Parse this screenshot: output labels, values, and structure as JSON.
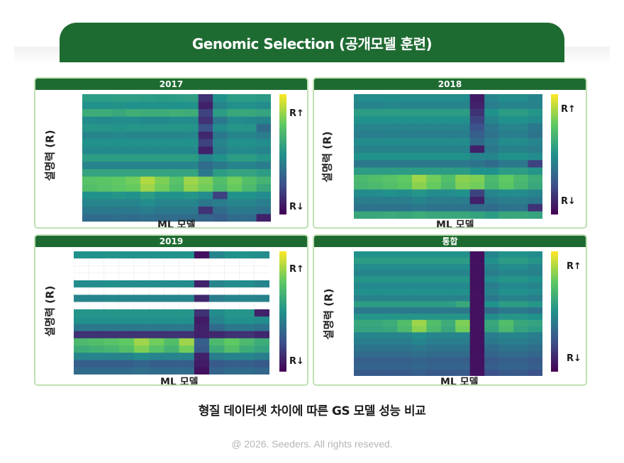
{
  "header": {
    "title": "Genomic Selection  (공개모델 훈련)"
  },
  "caption": "형질 데이터셋 차이에 따른 GS 모델 성능 비교",
  "footer": "@ 2026. Seeders. All rights reseved.",
  "colors": {
    "brand_green": "#1e6b32",
    "panel_border": "#bfe0b3"
  },
  "chart_data": [
    {
      "type": "heatmap",
      "title": "2017",
      "xlabel": "ML 모델",
      "ylabel": "설명력 (R)",
      "legend_high": "R↑",
      "legend_low": "R↓",
      "rows": 17,
      "cols": 13,
      "values": [
        [
          0.55,
          0.55,
          0.56,
          0.56,
          0.55,
          0.54,
          0.55,
          0.56,
          0.15,
          0.5,
          0.55,
          0.55,
          0.54
        ],
        [
          0.5,
          0.5,
          0.51,
          0.5,
          0.5,
          0.5,
          0.5,
          0.5,
          0.1,
          0.45,
          0.5,
          0.5,
          0.48
        ],
        [
          0.62,
          0.62,
          0.6,
          0.63,
          0.62,
          0.62,
          0.63,
          0.62,
          0.2,
          0.55,
          0.6,
          0.6,
          0.58
        ],
        [
          0.48,
          0.47,
          0.48,
          0.48,
          0.47,
          0.47,
          0.48,
          0.48,
          0.15,
          0.4,
          0.48,
          0.47,
          0.45
        ],
        [
          0.52,
          0.52,
          0.51,
          0.52,
          0.52,
          0.52,
          0.52,
          0.52,
          0.25,
          0.48,
          0.52,
          0.52,
          0.35
        ],
        [
          0.45,
          0.45,
          0.46,
          0.45,
          0.45,
          0.45,
          0.45,
          0.46,
          0.12,
          0.4,
          0.45,
          0.45,
          0.42
        ],
        [
          0.5,
          0.5,
          0.5,
          0.5,
          0.5,
          0.5,
          0.5,
          0.5,
          0.2,
          0.45,
          0.5,
          0.5,
          0.48
        ],
        [
          0.47,
          0.47,
          0.47,
          0.47,
          0.47,
          0.47,
          0.47,
          0.47,
          0.1,
          0.42,
          0.47,
          0.47,
          0.45
        ],
        [
          0.55,
          0.55,
          0.55,
          0.55,
          0.55,
          0.55,
          0.55,
          0.55,
          0.45,
          0.5,
          0.55,
          0.55,
          0.52
        ],
        [
          0.45,
          0.45,
          0.45,
          0.45,
          0.45,
          0.45,
          0.45,
          0.45,
          0.35,
          0.4,
          0.45,
          0.45,
          0.42
        ],
        [
          0.58,
          0.58,
          0.58,
          0.58,
          0.58,
          0.58,
          0.58,
          0.58,
          0.4,
          0.55,
          0.58,
          0.58,
          0.55
        ],
        [
          0.72,
          0.73,
          0.75,
          0.78,
          0.88,
          0.8,
          0.72,
          0.85,
          0.8,
          0.7,
          0.78,
          0.7,
          0.65
        ],
        [
          0.7,
          0.72,
          0.74,
          0.76,
          0.85,
          0.78,
          0.7,
          0.83,
          0.78,
          0.68,
          0.76,
          0.68,
          0.6
        ],
        [
          0.5,
          0.5,
          0.52,
          0.5,
          0.55,
          0.5,
          0.5,
          0.52,
          0.48,
          0.2,
          0.5,
          0.5,
          0.48
        ],
        [
          0.45,
          0.45,
          0.45,
          0.45,
          0.48,
          0.45,
          0.45,
          0.45,
          0.4,
          0.42,
          0.45,
          0.45,
          0.42
        ],
        [
          0.4,
          0.4,
          0.4,
          0.4,
          0.42,
          0.4,
          0.4,
          0.4,
          0.15,
          0.35,
          0.4,
          0.4,
          0.38
        ],
        [
          0.35,
          0.35,
          0.36,
          0.35,
          0.36,
          0.35,
          0.35,
          0.35,
          0.33,
          0.3,
          0.35,
          0.35,
          0.1
        ]
      ]
    },
    {
      "type": "heatmap",
      "title": "2018",
      "xlabel": "ML 모델",
      "ylabel": "설명력 (R)",
      "legend_high": "R↑",
      "legend_low": "R↓",
      "rows": 17,
      "cols": 13,
      "values": [
        [
          0.48,
          0.48,
          0.49,
          0.48,
          0.48,
          0.48,
          0.48,
          0.48,
          0.08,
          0.45,
          0.48,
          0.48,
          0.45
        ],
        [
          0.45,
          0.45,
          0.46,
          0.45,
          0.45,
          0.45,
          0.45,
          0.45,
          0.1,
          0.42,
          0.45,
          0.45,
          0.44
        ],
        [
          0.55,
          0.55,
          0.55,
          0.55,
          0.55,
          0.55,
          0.55,
          0.55,
          0.15,
          0.5,
          0.55,
          0.55,
          0.52
        ],
        [
          0.5,
          0.5,
          0.5,
          0.5,
          0.5,
          0.5,
          0.5,
          0.5,
          0.2,
          0.45,
          0.5,
          0.5,
          0.48
        ],
        [
          0.45,
          0.45,
          0.45,
          0.45,
          0.45,
          0.45,
          0.45,
          0.45,
          0.25,
          0.4,
          0.45,
          0.45,
          0.4
        ],
        [
          0.42,
          0.42,
          0.43,
          0.42,
          0.42,
          0.42,
          0.42,
          0.42,
          0.3,
          0.38,
          0.42,
          0.42,
          0.38
        ],
        [
          0.48,
          0.48,
          0.48,
          0.48,
          0.48,
          0.48,
          0.48,
          0.48,
          0.35,
          0.42,
          0.48,
          0.48,
          0.45
        ],
        [
          0.44,
          0.44,
          0.44,
          0.44,
          0.44,
          0.44,
          0.44,
          0.44,
          0.1,
          0.4,
          0.44,
          0.44,
          0.42
        ],
        [
          0.5,
          0.5,
          0.5,
          0.5,
          0.5,
          0.5,
          0.5,
          0.5,
          0.45,
          0.45,
          0.5,
          0.5,
          0.48
        ],
        [
          0.4,
          0.4,
          0.4,
          0.4,
          0.4,
          0.4,
          0.4,
          0.4,
          0.38,
          0.35,
          0.4,
          0.4,
          0.2
        ],
        [
          0.55,
          0.55,
          0.55,
          0.55,
          0.55,
          0.55,
          0.55,
          0.55,
          0.5,
          0.5,
          0.55,
          0.55,
          0.52
        ],
        [
          0.68,
          0.7,
          0.72,
          0.75,
          0.85,
          0.78,
          0.7,
          0.82,
          0.8,
          0.68,
          0.75,
          0.68,
          0.62
        ],
        [
          0.66,
          0.68,
          0.7,
          0.73,
          0.82,
          0.76,
          0.68,
          0.8,
          0.78,
          0.66,
          0.73,
          0.66,
          0.6
        ],
        [
          0.48,
          0.48,
          0.5,
          0.48,
          0.52,
          0.48,
          0.48,
          0.5,
          0.2,
          0.45,
          0.48,
          0.48,
          0.45
        ],
        [
          0.42,
          0.42,
          0.42,
          0.42,
          0.45,
          0.42,
          0.42,
          0.42,
          0.1,
          0.4,
          0.42,
          0.42,
          0.4
        ],
        [
          0.38,
          0.38,
          0.38,
          0.38,
          0.4,
          0.38,
          0.38,
          0.38,
          0.35,
          0.35,
          0.38,
          0.38,
          0.15
        ],
        [
          0.6,
          0.6,
          0.61,
          0.6,
          0.62,
          0.6,
          0.6,
          0.6,
          0.58,
          0.55,
          0.6,
          0.6,
          0.58
        ]
      ]
    },
    {
      "type": "heatmap",
      "title": "2019",
      "xlabel": "ML 모델",
      "ylabel": "설명력 (R)",
      "legend_high": "R↑",
      "legend_low": "R↓",
      "rows": 17,
      "cols": 13,
      "values": [
        [
          0.5,
          0.5,
          0.51,
          0.5,
          0.5,
          0.5,
          0.5,
          0.5,
          0.05,
          0.45,
          0.5,
          0.5,
          0.48
        ],
        [
          null,
          null,
          null,
          null,
          null,
          null,
          null,
          null,
          null,
          null,
          null,
          null,
          null
        ],
        [
          null,
          null,
          null,
          null,
          null,
          null,
          null,
          null,
          null,
          null,
          null,
          null,
          null
        ],
        [
          null,
          null,
          null,
          null,
          null,
          null,
          null,
          null,
          null,
          null,
          null,
          null,
          null
        ],
        [
          0.48,
          0.48,
          0.49,
          0.48,
          0.48,
          0.48,
          0.48,
          0.48,
          0.1,
          0.45,
          0.48,
          0.48,
          0.45
        ],
        [
          null,
          null,
          null,
          null,
          null,
          null,
          null,
          null,
          null,
          null,
          null,
          null,
          null
        ],
        [
          0.45,
          0.45,
          0.46,
          0.45,
          0.45,
          0.45,
          0.45,
          0.45,
          0.12,
          0.42,
          0.45,
          0.45,
          0.44
        ],
        [
          null,
          null,
          null,
          null,
          null,
          null,
          null,
          null,
          null,
          null,
          null,
          null,
          null
        ],
        [
          0.52,
          0.52,
          0.52,
          0.52,
          0.52,
          0.52,
          0.52,
          0.52,
          0.15,
          0.48,
          0.52,
          0.52,
          0.1
        ],
        [
          0.5,
          0.5,
          0.5,
          0.5,
          0.5,
          0.5,
          0.5,
          0.5,
          0.08,
          0.45,
          0.5,
          0.5,
          0.48
        ],
        [
          0.4,
          0.4,
          0.4,
          0.4,
          0.4,
          0.4,
          0.4,
          0.4,
          0.1,
          0.35,
          0.4,
          0.4,
          0.38
        ],
        [
          0.15,
          0.15,
          0.15,
          0.15,
          0.15,
          0.15,
          0.15,
          0.15,
          0.1,
          0.12,
          0.15,
          0.15,
          0.12
        ],
        [
          0.68,
          0.7,
          0.72,
          0.75,
          0.85,
          0.78,
          0.7,
          0.85,
          0.3,
          0.68,
          0.75,
          0.68,
          0.62
        ],
        [
          0.62,
          0.64,
          0.66,
          0.7,
          0.8,
          0.72,
          0.65,
          0.78,
          0.28,
          0.62,
          0.7,
          0.62,
          0.58
        ],
        [
          0.45,
          0.45,
          0.45,
          0.45,
          0.48,
          0.45,
          0.45,
          0.45,
          0.1,
          0.42,
          0.45,
          0.45,
          0.42
        ],
        [
          0.3,
          0.3,
          0.3,
          0.3,
          0.32,
          0.3,
          0.3,
          0.3,
          0.08,
          0.28,
          0.3,
          0.3,
          0.28
        ],
        [
          0.35,
          0.35,
          0.35,
          0.35,
          0.36,
          0.35,
          0.35,
          0.35,
          0.05,
          0.32,
          0.35,
          0.35,
          0.33
        ]
      ]
    },
    {
      "type": "heatmap",
      "title": "통합",
      "xlabel": "ML 모델",
      "ylabel": "설명력 (R)",
      "legend_high": "R↑",
      "legend_low": "R↓",
      "rows": 20,
      "cols": 13,
      "values": [
        [
          0.5,
          0.5,
          0.5,
          0.5,
          0.5,
          0.5,
          0.5,
          0.5,
          0.05,
          0.45,
          0.5,
          0.5,
          0.48
        ],
        [
          0.55,
          0.55,
          0.55,
          0.55,
          0.55,
          0.55,
          0.55,
          0.55,
          0.05,
          0.5,
          0.55,
          0.55,
          0.52
        ],
        [
          0.48,
          0.48,
          0.48,
          0.48,
          0.48,
          0.48,
          0.48,
          0.48,
          0.05,
          0.45,
          0.48,
          0.48,
          0.45
        ],
        [
          0.45,
          0.45,
          0.45,
          0.45,
          0.45,
          0.45,
          0.45,
          0.45,
          0.05,
          0.42,
          0.45,
          0.45,
          0.44
        ],
        [
          0.52,
          0.52,
          0.52,
          0.52,
          0.52,
          0.52,
          0.52,
          0.52,
          0.05,
          0.48,
          0.52,
          0.52,
          0.5
        ],
        [
          0.47,
          0.47,
          0.47,
          0.47,
          0.47,
          0.47,
          0.47,
          0.47,
          0.05,
          0.42,
          0.47,
          0.47,
          0.45
        ],
        [
          0.5,
          0.5,
          0.5,
          0.5,
          0.5,
          0.5,
          0.5,
          0.5,
          0.05,
          0.45,
          0.5,
          0.5,
          0.48
        ],
        [
          0.44,
          0.44,
          0.44,
          0.44,
          0.44,
          0.44,
          0.44,
          0.44,
          0.05,
          0.4,
          0.44,
          0.44,
          0.42
        ],
        [
          0.55,
          0.55,
          0.55,
          0.55,
          0.55,
          0.55,
          0.55,
          0.6,
          0.05,
          0.5,
          0.55,
          0.55,
          0.52
        ],
        [
          0.4,
          0.4,
          0.4,
          0.4,
          0.4,
          0.4,
          0.4,
          0.4,
          0.05,
          0.35,
          0.4,
          0.4,
          0.38
        ],
        [
          0.52,
          0.52,
          0.52,
          0.52,
          0.52,
          0.52,
          0.52,
          0.52,
          0.05,
          0.48,
          0.52,
          0.52,
          0.5
        ],
        [
          0.6,
          0.6,
          0.62,
          0.7,
          0.85,
          0.7,
          0.62,
          0.8,
          0.05,
          0.6,
          0.7,
          0.6,
          0.58
        ],
        [
          0.58,
          0.58,
          0.6,
          0.68,
          0.82,
          0.68,
          0.6,
          0.78,
          0.05,
          0.58,
          0.68,
          0.58,
          0.55
        ],
        [
          0.45,
          0.45,
          0.45,
          0.45,
          0.48,
          0.45,
          0.45,
          0.45,
          0.05,
          0.42,
          0.45,
          0.45,
          0.42
        ],
        [
          0.42,
          0.42,
          0.42,
          0.42,
          0.45,
          0.42,
          0.42,
          0.42,
          0.05,
          0.4,
          0.42,
          0.42,
          0.4
        ],
        [
          0.38,
          0.38,
          0.38,
          0.38,
          0.4,
          0.38,
          0.38,
          0.38,
          0.05,
          0.35,
          0.38,
          0.38,
          0.36
        ],
        [
          0.35,
          0.35,
          0.35,
          0.35,
          0.36,
          0.35,
          0.35,
          0.35,
          0.05,
          0.32,
          0.35,
          0.35,
          0.33
        ],
        [
          0.3,
          0.3,
          0.3,
          0.3,
          0.32,
          0.3,
          0.3,
          0.3,
          0.05,
          0.28,
          0.3,
          0.3,
          0.28
        ],
        [
          0.32,
          0.32,
          0.32,
          0.32,
          0.33,
          0.32,
          0.32,
          0.32,
          0.05,
          0.3,
          0.32,
          0.32,
          0.3
        ],
        [
          0.28,
          0.28,
          0.28,
          0.28,
          0.3,
          0.28,
          0.28,
          0.28,
          0.05,
          0.25,
          0.28,
          0.28,
          0.25
        ]
      ]
    }
  ]
}
